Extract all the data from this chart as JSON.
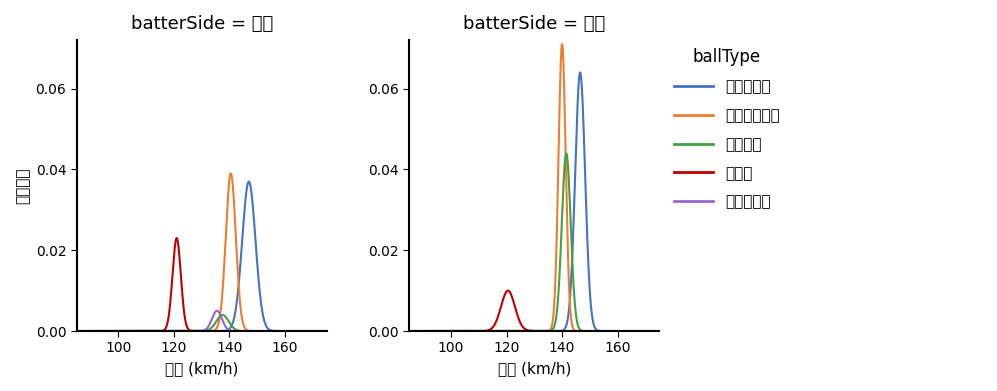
{
  "title_left": "batterSide = 右打",
  "title_right": "batterSide = 左打",
  "ylabel": "確率密度",
  "xlabel": "球速 (km/h)",
  "legend_title": "ballType",
  "xlim": [
    85,
    175
  ],
  "ylim": [
    0,
    0.072
  ],
  "yticks": [
    0.0,
    0.02,
    0.04,
    0.06
  ],
  "xticks": [
    100,
    120,
    140,
    160
  ],
  "ball_types": [
    "ストレート",
    "カットボール",
    "シンカー",
    "カーブ",
    "スライダー"
  ],
  "colors": [
    "#4472C4",
    "#ED7D31",
    "#44A040",
    "#C00000",
    "#9966CC"
  ],
  "right_data": {
    "ストレート": {
      "mean": 147.0,
      "std": 2.4,
      "peak": 0.037
    },
    "カットボール": {
      "mean": 140.5,
      "std": 1.8,
      "peak": 0.039
    },
    "シンカー": {
      "mean": 137.5,
      "std": 2.2,
      "peak": 0.004
    },
    "カーブ": {
      "mean": 121.0,
      "std": 1.5,
      "peak": 0.023
    },
    "スライダー": {
      "mean": 135.5,
      "std": 1.8,
      "peak": 0.005
    }
  },
  "left_data": {
    "ストレート": {
      "mean": 146.5,
      "std": 1.8,
      "peak": 0.064
    },
    "カットボール": {
      "mean": 140.0,
      "std": 1.3,
      "peak": 0.071
    },
    "シンカー": {
      "mean": 141.5,
      "std": 1.6,
      "peak": 0.044
    },
    "カーブ": {
      "mean": 120.5,
      "std": 2.5,
      "peak": 0.01
    },
    "スライダー": {
      "mean": 135.0,
      "std": 2.0,
      "peak": 0.0
    }
  },
  "figsize": [
    9.97,
    3.91
  ],
  "dpi": 100,
  "background_color": "#FFFFFF"
}
